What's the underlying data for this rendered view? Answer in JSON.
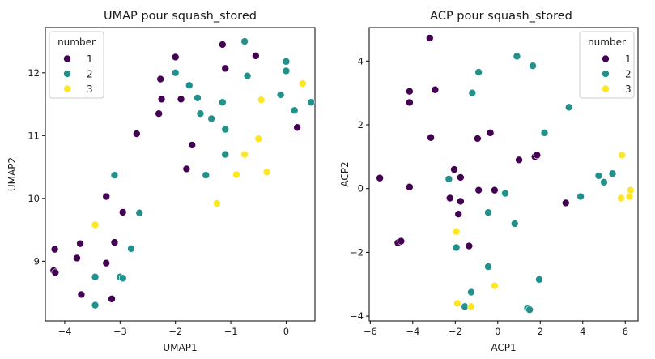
{
  "chart_data": [
    {
      "type": "scatter",
      "title": "UMAP pour squash_stored",
      "xlabel": "UMAP1",
      "ylabel": "UMAP2",
      "xlim": [
        -4.35,
        0.52
      ],
      "ylim": [
        8.05,
        12.72
      ],
      "xticks": [
        -4,
        -3,
        -2,
        -1,
        0
      ],
      "yticks": [
        9,
        10,
        11,
        12
      ],
      "grid": false,
      "legend": {
        "title": "number",
        "position": "top-left"
      },
      "series": [
        {
          "name": "1",
          "color": "#440154",
          "points": [
            [
              -4.18,
              9.19
            ],
            [
              -3.72,
              9.28
            ],
            [
              -3.78,
              9.05
            ],
            [
              -4.2,
              8.85
            ],
            [
              -4.17,
              8.82
            ],
            [
              -3.25,
              8.97
            ],
            [
              -3.7,
              8.47
            ],
            [
              -3.15,
              8.4
            ],
            [
              -3.1,
              9.3
            ],
            [
              -2.95,
              9.78
            ],
            [
              -3.25,
              10.03
            ],
            [
              -2.7,
              11.03
            ],
            [
              -1.8,
              10.47
            ],
            [
              -1.7,
              10.85
            ],
            [
              -2.3,
              11.35
            ],
            [
              -2.25,
              11.58
            ],
            [
              -1.9,
              11.58
            ],
            [
              -2.27,
              11.9
            ],
            [
              -2.0,
              12.25
            ],
            [
              -1.15,
              12.45
            ],
            [
              -1.1,
              12.07
            ],
            [
              -0.55,
              12.27
            ],
            [
              0.2,
              11.13
            ]
          ]
        },
        {
          "name": "2",
          "color": "#21918c",
          "points": [
            [
              -3.45,
              8.75
            ],
            [
              -3.0,
              8.75
            ],
            [
              -2.95,
              8.73
            ],
            [
              -3.45,
              8.3
            ],
            [
              -2.8,
              9.2
            ],
            [
              -2.65,
              9.77
            ],
            [
              -3.1,
              10.37
            ],
            [
              -1.45,
              10.37
            ],
            [
              -1.1,
              10.7
            ],
            [
              -1.75,
              11.8
            ],
            [
              -1.55,
              11.35
            ],
            [
              -1.35,
              11.27
            ],
            [
              -1.1,
              11.1
            ],
            [
              -1.15,
              11.53
            ],
            [
              -1.6,
              11.6
            ],
            [
              -2.0,
              12.0
            ],
            [
              -0.75,
              12.5
            ],
            [
              -0.7,
              11.95
            ],
            [
              -0.1,
              11.65
            ],
            [
              0.0,
              12.18
            ],
            [
              0.0,
              12.03
            ],
            [
              0.15,
              11.4
            ],
            [
              0.45,
              11.53
            ]
          ]
        },
        {
          "name": "3",
          "color": "#fde725",
          "points": [
            [
              -3.45,
              9.58
            ],
            [
              -1.25,
              9.92
            ],
            [
              -0.9,
              10.38
            ],
            [
              -0.75,
              10.7
            ],
            [
              -0.5,
              10.95
            ],
            [
              -0.35,
              10.42
            ],
            [
              -0.45,
              11.57
            ],
            [
              0.3,
              11.83
            ]
          ]
        }
      ]
    },
    {
      "type": "scatter",
      "title": "ACP pour squash_stored",
      "xlabel": "ACP1",
      "ylabel": "ACP2",
      "xlim": [
        -6.05,
        6.6
      ],
      "ylim": [
        -4.15,
        5.05
      ],
      "xticks": [
        -6,
        -4,
        -2,
        0,
        2,
        4,
        6
      ],
      "yticks": [
        -4,
        -2,
        0,
        2,
        4
      ],
      "grid": false,
      "legend": {
        "title": "number",
        "position": "top-right"
      },
      "series": [
        {
          "name": "1",
          "color": "#440154",
          "points": [
            [
              -5.55,
              0.33
            ],
            [
              -4.15,
              0.05
            ],
            [
              -4.7,
              -1.7
            ],
            [
              -4.55,
              -1.65
            ],
            [
              -3.2,
              4.72
            ],
            [
              -4.15,
              3.05
            ],
            [
              -4.15,
              2.7
            ],
            [
              -2.95,
              3.1
            ],
            [
              -3.15,
              1.6
            ],
            [
              -2.05,
              0.6
            ],
            [
              -1.75,
              0.35
            ],
            [
              -2.25,
              -0.3
            ],
            [
              -1.75,
              -0.4
            ],
            [
              -1.85,
              -0.8
            ],
            [
              -1.35,
              -1.8
            ],
            [
              -0.95,
              1.57
            ],
            [
              -0.35,
              1.75
            ],
            [
              -0.9,
              -0.05
            ],
            [
              -0.15,
              -0.05
            ],
            [
              1.0,
              0.9
            ],
            [
              1.75,
              1.0
            ],
            [
              1.85,
              1.05
            ],
            [
              3.2,
              -0.45
            ]
          ]
        },
        {
          "name": "2",
          "color": "#21918c",
          "points": [
            [
              -2.3,
              0.3
            ],
            [
              -1.95,
              -1.85
            ],
            [
              -1.25,
              -3.25
            ],
            [
              -1.55,
              -3.7
            ],
            [
              -0.45,
              -0.75
            ],
            [
              -0.45,
              -2.45
            ],
            [
              0.35,
              -0.15
            ],
            [
              -1.2,
              3.0
            ],
            [
              -0.9,
              3.65
            ],
            [
              0.9,
              4.15
            ],
            [
              1.65,
              3.85
            ],
            [
              2.2,
              1.75
            ],
            [
              3.35,
              2.55
            ],
            [
              0.8,
              -1.1
            ],
            [
              1.4,
              -3.75
            ],
            [
              1.5,
              -3.8
            ],
            [
              1.95,
              -2.85
            ],
            [
              3.9,
              -0.25
            ],
            [
              4.75,
              0.4
            ],
            [
              5.0,
              0.2
            ],
            [
              5.4,
              0.47
            ]
          ]
        },
        {
          "name": "3",
          "color": "#fde725",
          "points": [
            [
              -1.95,
              -1.35
            ],
            [
              -1.9,
              -3.6
            ],
            [
              -1.25,
              -3.7
            ],
            [
              -0.15,
              -3.05
            ],
            [
              5.85,
              1.05
            ],
            [
              5.8,
              -0.3
            ],
            [
              6.2,
              -0.25
            ],
            [
              6.25,
              -0.05
            ]
          ]
        }
      ]
    }
  ]
}
